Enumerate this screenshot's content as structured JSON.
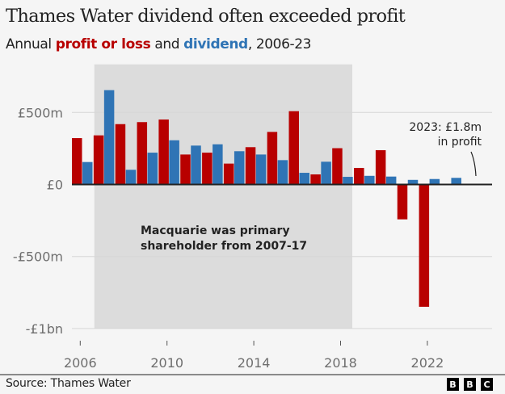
{
  "header": {
    "title": "Thames Water dividend often exceeded profit",
    "subtitle_prefix": "Annual ",
    "subtitle_profit": "profit or loss",
    "subtitle_mid": " and ",
    "subtitle_dividend": "dividend",
    "subtitle_suffix": ", 2006-23"
  },
  "footer": {
    "source": "Source: Thames Water",
    "logo_letters": [
      "B",
      "B",
      "C"
    ]
  },
  "colors": {
    "profit": "#b80000",
    "dividend": "#2f74b5",
    "shade": "#dcdcdc",
    "grid": "#d6d6d6",
    "axis": "#222222",
    "label": "#6e6e6e"
  },
  "chart_data": {
    "type": "bar",
    "title": "Thames Water dividend often exceeded profit",
    "subtitle": "Annual profit or loss and dividend, 2006-23",
    "xlabel": "",
    "ylabel": "",
    "categories": [
      2006,
      2007,
      2008,
      2009,
      2010,
      2011,
      2012,
      2013,
      2014,
      2015,
      2016,
      2017,
      2018,
      2019,
      2020,
      2021,
      2022,
      2023
    ],
    "series": [
      {
        "name": "profit or loss",
        "color": "#b80000",
        "values": [
          322,
          341,
          419,
          433,
          451,
          208,
          221,
          145,
          259,
          365,
          509,
          70,
          252,
          115,
          238,
          -242,
          -849,
          1.8
        ]
      },
      {
        "name": "dividend",
        "color": "#2f74b5",
        "values": [
          156,
          655,
          102,
          221,
          307,
          270,
          279,
          231,
          208,
          169,
          81,
          158,
          53,
          60,
          55,
          32,
          38,
          46
        ]
      }
    ],
    "ylim": [
      -1000,
      760
    ],
    "yticks": [
      {
        "value": 500,
        "label": "£500m"
      },
      {
        "value": 0,
        "label": "£0"
      },
      {
        "value": -500,
        "label": "-£500m"
      },
      {
        "value": -1000,
        "label": "-£1bn"
      }
    ],
    "xticks": [
      2006,
      2010,
      2014,
      2018,
      2022
    ],
    "grid": true,
    "shaded_period": {
      "from": 2007,
      "to": 2017,
      "label_line1": "Macquarie was primary",
      "label_line2": "shareholder from 2007-17"
    },
    "annotations": [
      {
        "year": 2023,
        "line1": "2023: £1.8m",
        "line2": "in profit"
      }
    ],
    "units": "£ million"
  }
}
